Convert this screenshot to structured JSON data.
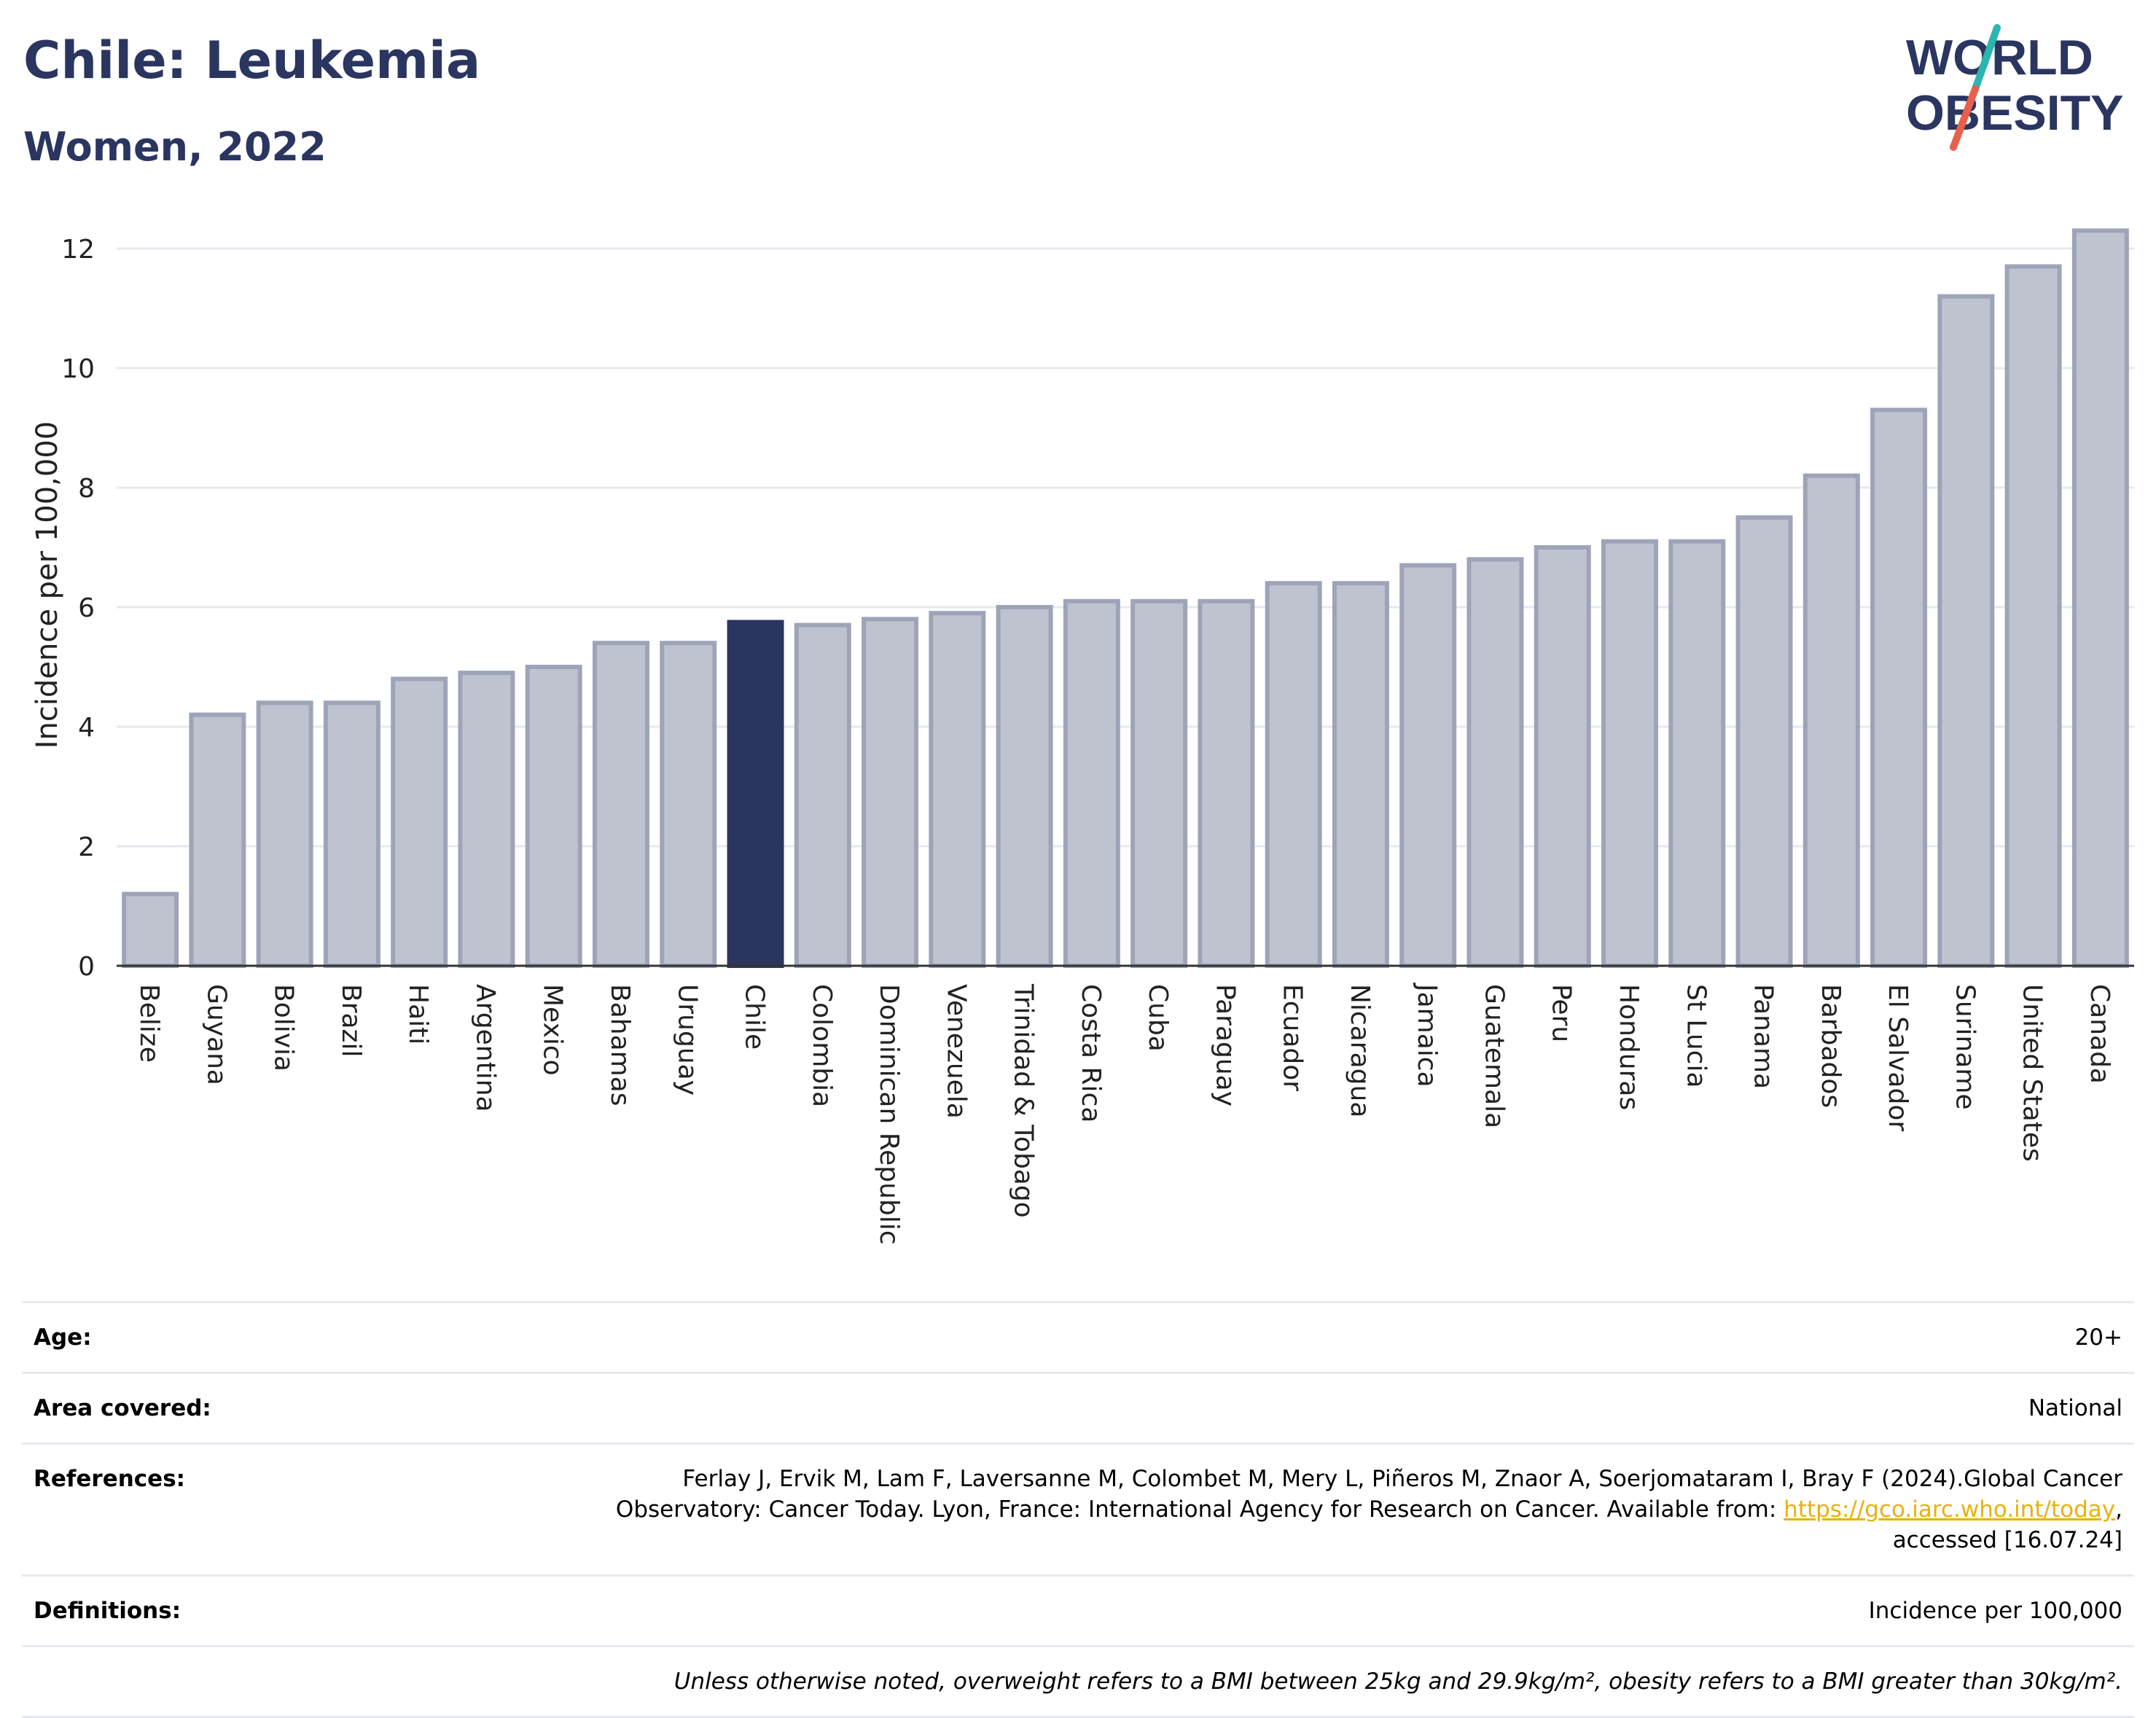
{
  "header": {
    "title": "Chile: Leukemia",
    "subtitle": "Women, 2022"
  },
  "logo": {
    "line1": "WORLD",
    "line2": "OBESITY",
    "colors": {
      "text": "#2a3560",
      "slash_top": "#2bb5b0",
      "slash_bottom": "#e8604c"
    }
  },
  "chart_data": {
    "type": "bar",
    "ylabel": "Incidence per 100,000",
    "xlabel": "",
    "ylim": [
      0,
      12.5
    ],
    "yticks": [
      0,
      2,
      4,
      6,
      8,
      10,
      12
    ],
    "grid": true,
    "highlight": "Chile",
    "colors": {
      "bar": "#bfc3d0",
      "bar_border": "#9ea4b8",
      "highlight": "#2a3560"
    },
    "categories": [
      "Belize",
      "Guyana",
      "Bolivia",
      "Brazil",
      "Haiti",
      "Argentina",
      "Mexico",
      "Bahamas",
      "Uruguay",
      "Chile",
      "Colombia",
      "Dominican Republic",
      "Venezuela",
      "Trinidad & Tobago",
      "Costa Rica",
      "Cuba",
      "Paraguay",
      "Ecuador",
      "Nicaragua",
      "Jamaica",
      "Guatemala",
      "Peru",
      "Honduras",
      "St Lucia",
      "Panama",
      "Barbados",
      "El Salvador",
      "Suriname",
      "United States",
      "Canada"
    ],
    "values": [
      1.2,
      4.2,
      4.4,
      4.4,
      4.8,
      4.9,
      5.0,
      5.4,
      5.4,
      5.75,
      5.7,
      5.8,
      5.9,
      6.0,
      6.1,
      6.1,
      6.1,
      6.4,
      6.4,
      6.7,
      6.8,
      7.0,
      7.1,
      7.1,
      7.5,
      8.2,
      9.3,
      11.2,
      11.7,
      12.3
    ]
  },
  "info": {
    "age": {
      "label": "Age:",
      "value": "20+"
    },
    "area": {
      "label": "Area covered:",
      "value": "National"
    },
    "references": {
      "label": "References:",
      "line1": "Ferlay J, Ervik M, Lam F, Laversanne M, Colombet M, Mery L, Piñeros M, Znaor A, Soerjomataram I, Bray F (2024).Global Cancer",
      "line2_prefix": "Observatory: Cancer Today. Lyon, France: International Agency for Research on Cancer. Available from: ",
      "link": "https://gco.iarc.who.int/today",
      "line2_suffix": ",",
      "line3": "accessed [16.07.24]"
    },
    "definitions": {
      "label": "Definitions:",
      "value": "Incidence per 100,000"
    },
    "note": "Unless otherwise noted, overweight refers to a BMI between 25kg and 29.9kg/m², obesity refers to a BMI greater than 30kg/m²."
  }
}
